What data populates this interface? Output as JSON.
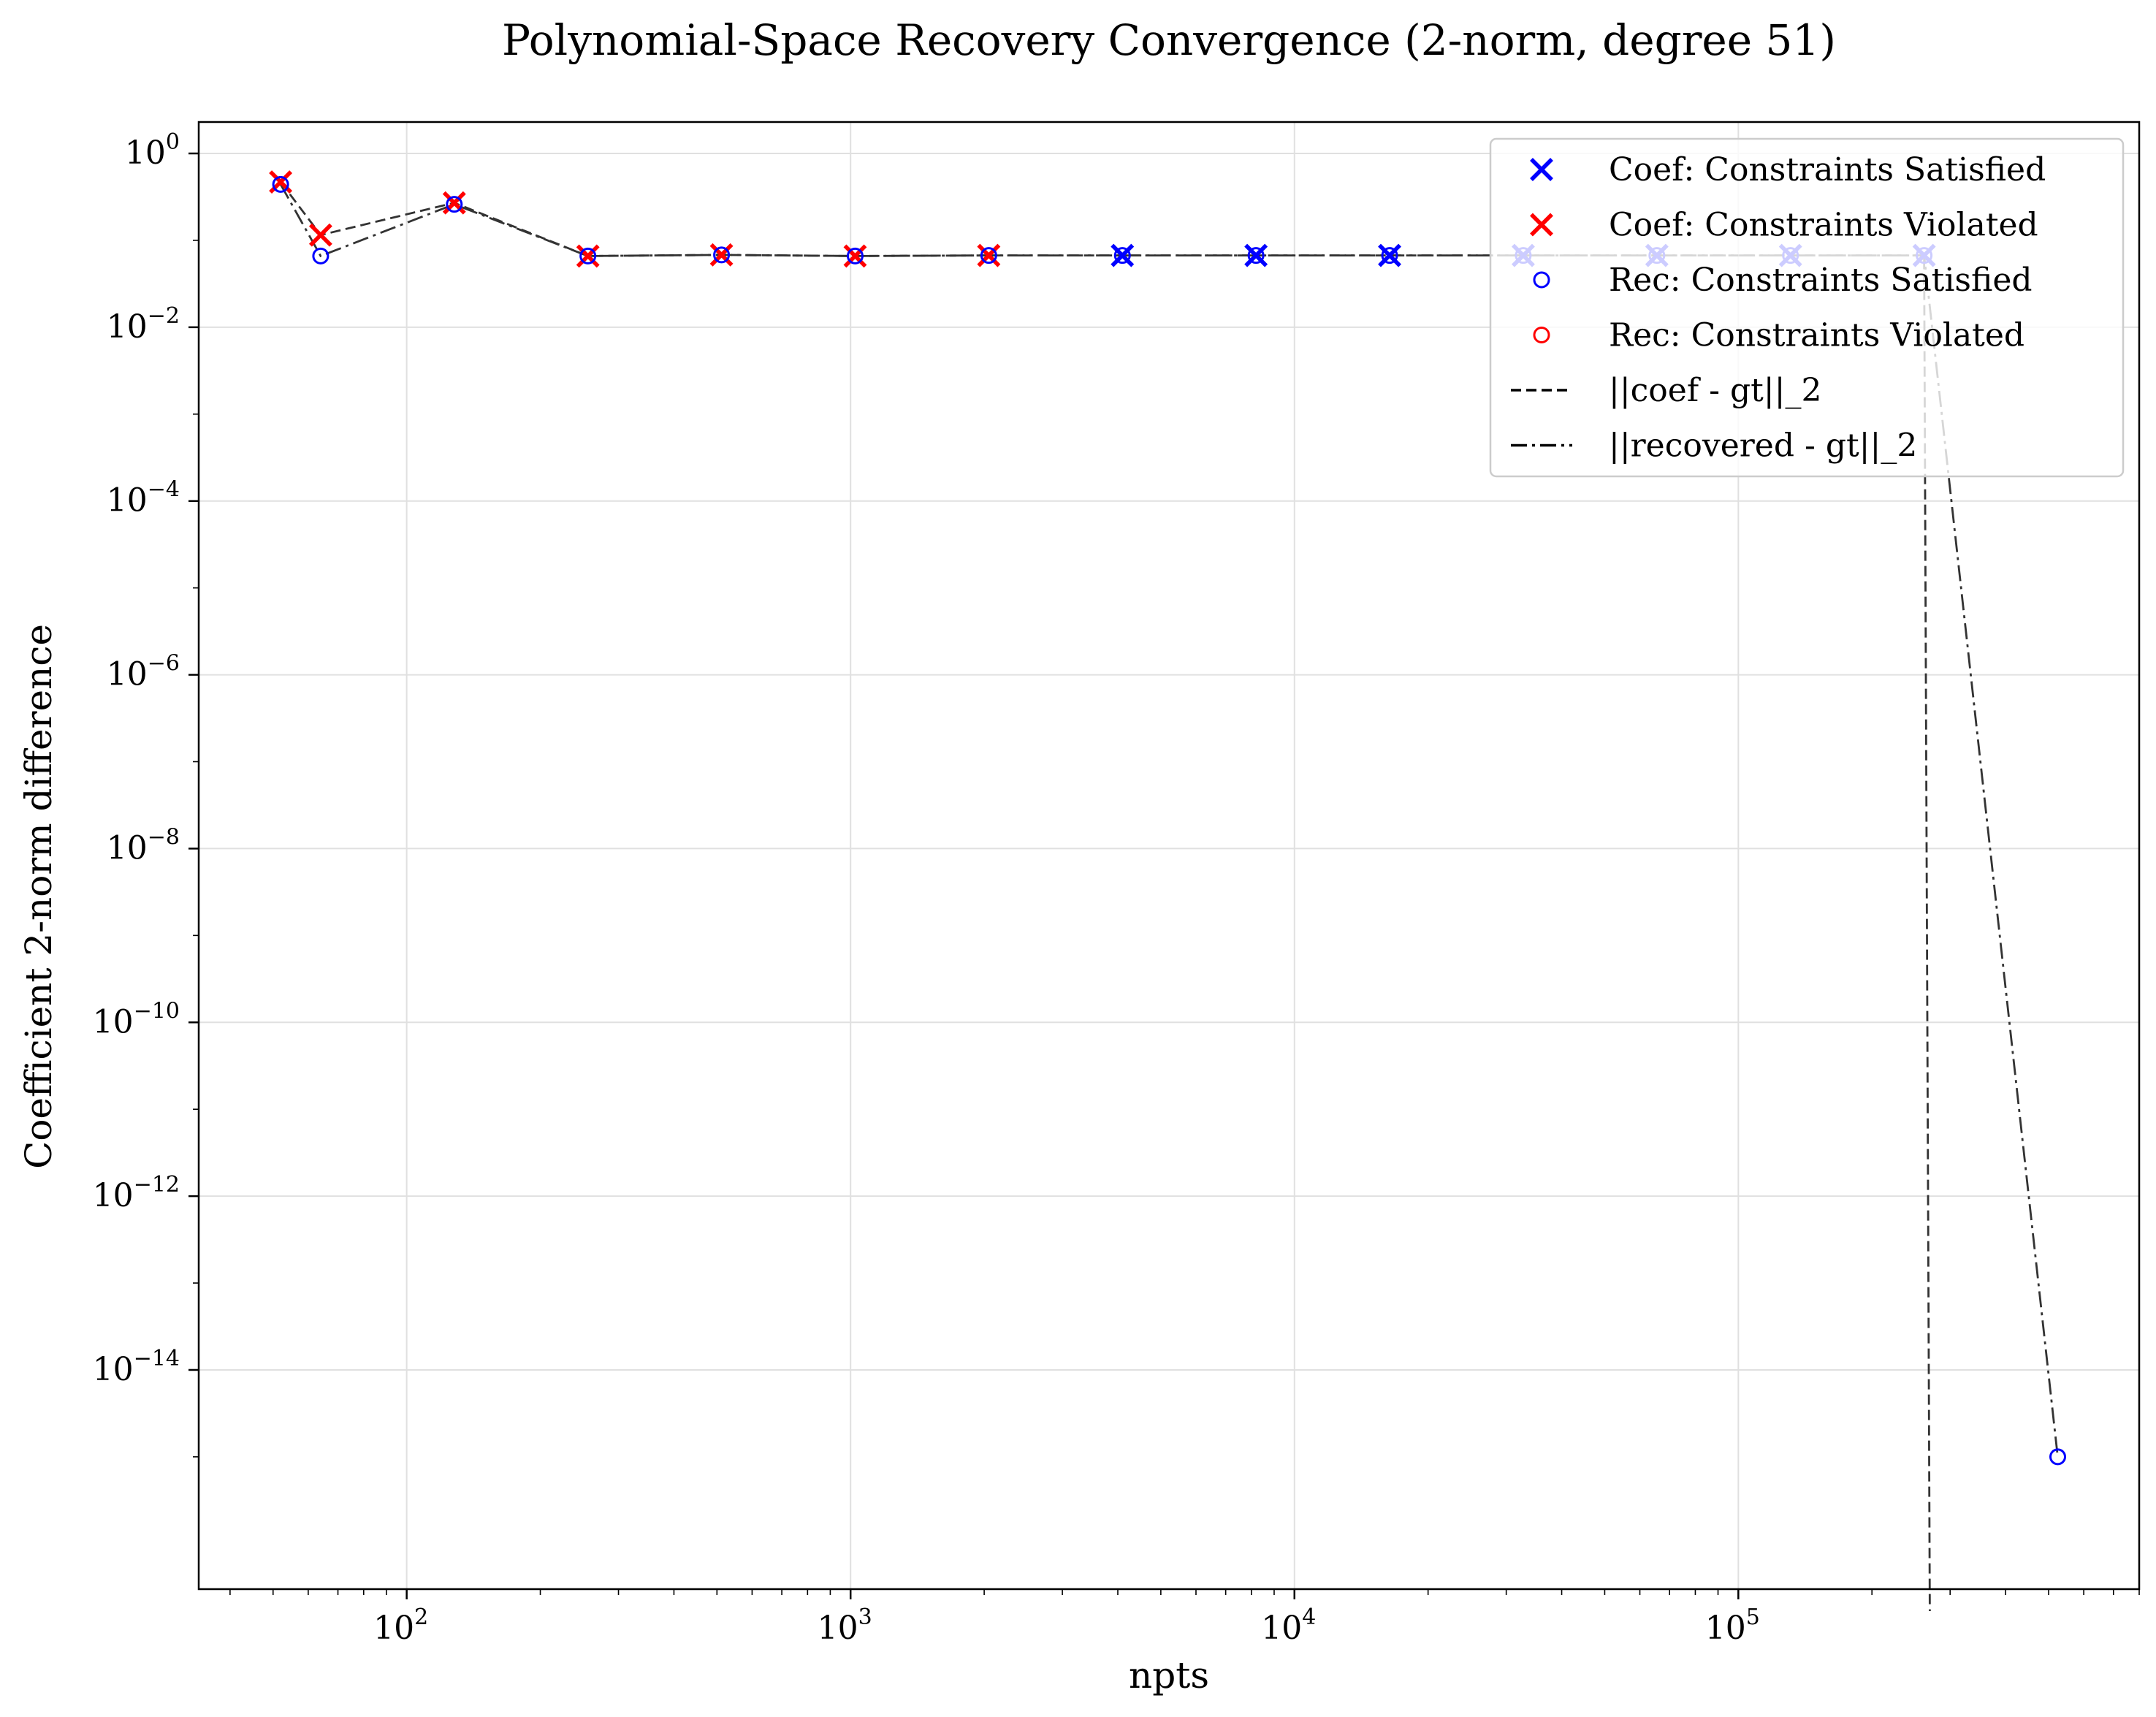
{
  "chart_data": {
    "type": "line",
    "title": "Polynomial-Space Recovery Convergence (2-norm, degree 51)",
    "xlabel": "npts",
    "ylabel": "Coefficient 2-norm difference",
    "xscale": "log",
    "yscale": "log",
    "xlim": [
      34,
      800000
    ],
    "ylim": [
      3e-17,
      2.3
    ],
    "grid": true,
    "legend_position": "upper right",
    "x_ticks": [
      {
        "value": 100,
        "base": "10",
        "exp": "2"
      },
      {
        "value": 1000,
        "base": "10",
        "exp": "3"
      },
      {
        "value": 10000,
        "base": "10",
        "exp": "4"
      },
      {
        "value": 100000,
        "base": "10",
        "exp": "5"
      }
    ],
    "y_ticks": [
      {
        "value": 1,
        "base": "10",
        "exp": "0"
      },
      {
        "value": 0.01,
        "base": "10",
        "exp": "−2"
      },
      {
        "value": 0.0001,
        "base": "10",
        "exp": "−4"
      },
      {
        "value": 1e-06,
        "base": "10",
        "exp": "−6"
      },
      {
        "value": 1e-08,
        "base": "10",
        "exp": "−8"
      },
      {
        "value": 1e-10,
        "base": "10",
        "exp": "−10"
      },
      {
        "value": 1e-12,
        "base": "10",
        "exp": "−12"
      },
      {
        "value": 1e-14,
        "base": "10",
        "exp": "−14"
      }
    ],
    "colors": {
      "satisfied": "#0000ff",
      "violated": "#ff0000",
      "line": "#333333"
    },
    "legend": [
      {
        "label": "Coef: Constraints Satisfied",
        "marker": "x",
        "color": "#0000ff"
      },
      {
        "label": "Coef: Constraints Violated",
        "marker": "x",
        "color": "#ff0000"
      },
      {
        "label": "Rec: Constraints Satisfied",
        "marker": "o",
        "color": "#0000ff"
      },
      {
        "label": "Rec: Constraints Violated",
        "marker": "o",
        "color": "#ff0000"
      },
      {
        "label": "||coef - gt||_2",
        "line": "dashed"
      },
      {
        "label": "||recovered - gt||_2",
        "line": "dashdot"
      }
    ],
    "series": [
      {
        "name": "||coef - gt||_2",
        "line": "dashed",
        "marker": "x",
        "points": [
          {
            "x": 52,
            "y": 0.47,
            "status": "violated"
          },
          {
            "x": 64,
            "y": 0.115,
            "status": "violated"
          },
          {
            "x": 128,
            "y": 0.27,
            "status": "violated"
          },
          {
            "x": 256,
            "y": 0.066,
            "status": "violated"
          },
          {
            "x": 512,
            "y": 0.068,
            "status": "violated"
          },
          {
            "x": 1024,
            "y": 0.066,
            "status": "violated"
          },
          {
            "x": 2048,
            "y": 0.067,
            "status": "violated"
          },
          {
            "x": 4096,
            "y": 0.067,
            "status": "satisfied"
          },
          {
            "x": 8192,
            "y": 0.067,
            "status": "satisfied"
          },
          {
            "x": 16384,
            "y": 0.067,
            "status": "satisfied"
          },
          {
            "x": 32768,
            "y": 0.067,
            "status": "satisfied"
          },
          {
            "x": 65536,
            "y": 0.067,
            "status": "satisfied"
          },
          {
            "x": 131072,
            "y": 0.067,
            "status": "satisfied"
          },
          {
            "x": 262144,
            "y": 0.067,
            "status": "satisfied"
          },
          {
            "x": 270000,
            "y": 0,
            "status": "none"
          }
        ]
      },
      {
        "name": "||recovered - gt||_2",
        "line": "dashdot",
        "marker": "o",
        "points": [
          {
            "x": 52,
            "y": 0.44,
            "status": "satisfied"
          },
          {
            "x": 64,
            "y": 0.066,
            "status": "satisfied"
          },
          {
            "x": 128,
            "y": 0.26,
            "status": "satisfied"
          },
          {
            "x": 256,
            "y": 0.066,
            "status": "satisfied"
          },
          {
            "x": 512,
            "y": 0.068,
            "status": "satisfied"
          },
          {
            "x": 1024,
            "y": 0.066,
            "status": "satisfied"
          },
          {
            "x": 2048,
            "y": 0.067,
            "status": "satisfied"
          },
          {
            "x": 4096,
            "y": 0.067,
            "status": "satisfied"
          },
          {
            "x": 8192,
            "y": 0.067,
            "status": "satisfied"
          },
          {
            "x": 16384,
            "y": 0.067,
            "status": "satisfied"
          },
          {
            "x": 32768,
            "y": 0.067,
            "status": "satisfied"
          },
          {
            "x": 65536,
            "y": 0.067,
            "status": "satisfied"
          },
          {
            "x": 131072,
            "y": 0.067,
            "status": "satisfied"
          },
          {
            "x": 262144,
            "y": 0.067,
            "status": "satisfied"
          },
          {
            "x": 524288,
            "y": 1e-15,
            "status": "satisfied"
          }
        ]
      }
    ]
  }
}
